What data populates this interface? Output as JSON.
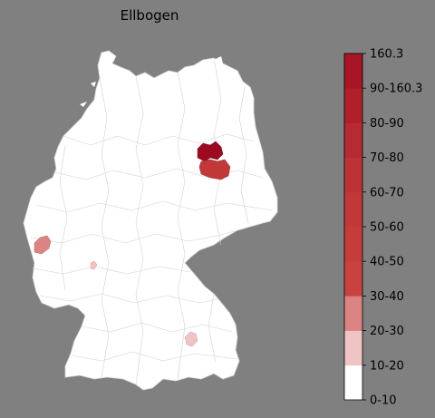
{
  "title": "Ellbogen",
  "legend": {
    "bins": [
      {
        "label": "0-10",
        "color": "#ffffff"
      },
      {
        "label": "10-20",
        "color": "#f0c4c4"
      },
      {
        "label": "20-30",
        "color": "#dc8383"
      },
      {
        "label": "30-40",
        "color": "#c8423f"
      },
      {
        "label": "40-50",
        "color": "#c53d3b"
      },
      {
        "label": "50-60",
        "color": "#c13838"
      },
      {
        "label": "60-70",
        "color": "#bd3335"
      },
      {
        "label": "70-80",
        "color": "#b62a31"
      },
      {
        "label": "80-90",
        "color": "#af202b"
      },
      {
        "label": "90-160.3",
        "color": "#a71526"
      },
      {
        "label": "160.3",
        "color": "#9c0a21"
      }
    ]
  },
  "map": {
    "base_color": "#ffffff",
    "border_color": "#cfcfcf",
    "highlighted_regions": [
      {
        "id": "region-berlin-north",
        "bin": "160.3",
        "color": "#9c0a21"
      },
      {
        "id": "region-berlin-south",
        "bin": "50-60",
        "color": "#c13838"
      },
      {
        "id": "region-west",
        "bin": "20-30",
        "color": "#dc8383"
      },
      {
        "id": "region-southeast",
        "bin": "10-20",
        "color": "#f0c4c4"
      },
      {
        "id": "region-southwest-small",
        "bin": "10-20",
        "color": "#f0c4c4"
      }
    ]
  }
}
